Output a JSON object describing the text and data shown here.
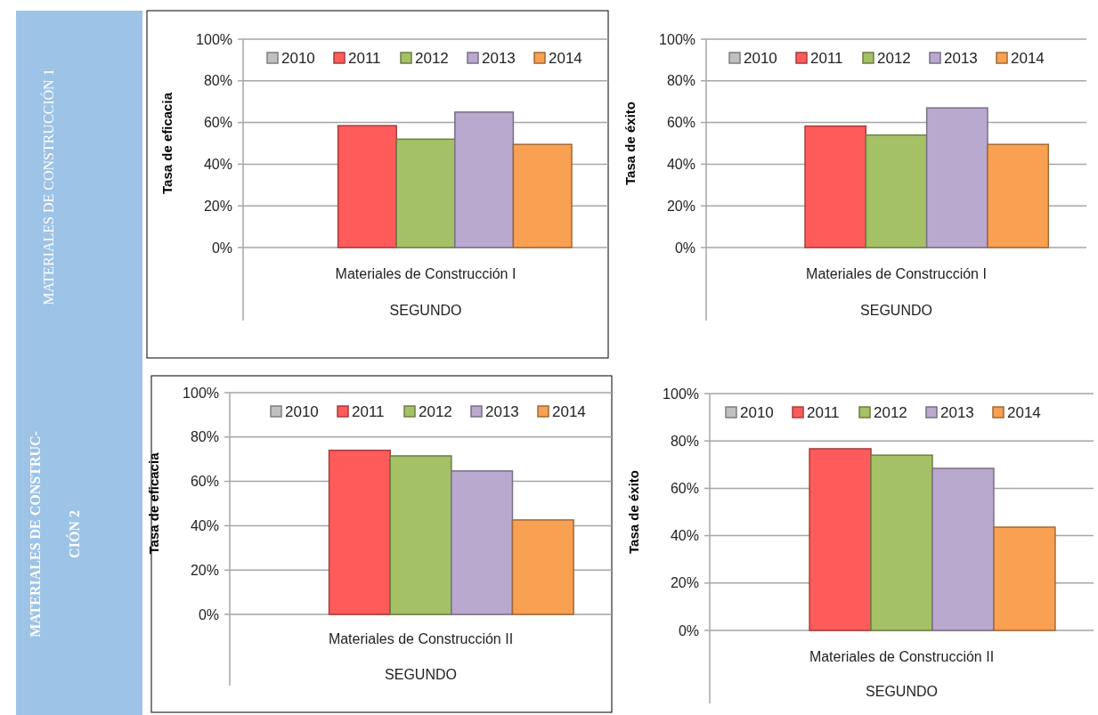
{
  "chart_data": [
    {
      "type": "bar",
      "ylabel": "Tasa de eficacia",
      "xlabel": "SEGUNDO",
      "categories": [
        "Materiales de Construcción I"
      ],
      "ylim": [
        0,
        1
      ],
      "yticks": [
        {
          "value": 0,
          "label": "0%"
        },
        {
          "value": 0.2,
          "label": "20%"
        },
        {
          "value": 0.4,
          "label": "40%"
        },
        {
          "value": 0.6,
          "label": "60%"
        },
        {
          "value": 0.8,
          "label": "80%"
        },
        {
          "value": 1,
          "label": "100%"
        }
      ],
      "grid": "y",
      "legend": "top right",
      "annotations": [
        "MATERIALES DE CONSTRUCCIÓN 1"
      ],
      "series": [
        {
          "name": "2010",
          "color": "#c0c0c0",
          "values": [
            null
          ]
        },
        {
          "name": "2011",
          "color": "#ff5b5b",
          "values": [
            0.585
          ]
        },
        {
          "name": "2012",
          "color": "#a5c166",
          "values": [
            0.52
          ]
        },
        {
          "name": "2013",
          "color": "#b9a9cf",
          "values": [
            0.65
          ]
        },
        {
          "name": "2014",
          "color": "#f9a052",
          "values": [
            0.495
          ]
        }
      ]
    },
    {
      "type": "bar",
      "ylabel": "Tasa de éxito",
      "xlabel": "SEGUNDO",
      "categories": [
        "Materiales de Construcción I"
      ],
      "ylim": [
        0,
        1
      ],
      "yticks": [
        {
          "value": 0,
          "label": "0%"
        },
        {
          "value": 0.2,
          "label": "20%"
        },
        {
          "value": 0.4,
          "label": "40%"
        },
        {
          "value": 0.6,
          "label": "60%"
        },
        {
          "value": 0.8,
          "label": "80%"
        },
        {
          "value": 1,
          "label": "100%"
        }
      ],
      "grid": "y",
      "legend": "top",
      "series": [
        {
          "name": "2010",
          "color": "#c0c0c0",
          "values": [
            null
          ]
        },
        {
          "name": "2011",
          "color": "#ff5b5b",
          "values": [
            0.583
          ]
        },
        {
          "name": "2012",
          "color": "#a5c166",
          "values": [
            0.54
          ]
        },
        {
          "name": "2013",
          "color": "#b9a9cf",
          "values": [
            0.67
          ]
        },
        {
          "name": "2014",
          "color": "#f9a052",
          "values": [
            0.495
          ]
        }
      ]
    },
    {
      "type": "bar",
      "ylabel": "Tasa de eficacia",
      "xlabel": "SEGUNDO",
      "categories": [
        "Materiales de Construcción II"
      ],
      "ylim": [
        0,
        1
      ],
      "yticks": [
        {
          "value": 0,
          "label": "0%"
        },
        {
          "value": 0.2,
          "label": "20%"
        },
        {
          "value": 0.4,
          "label": "40%"
        },
        {
          "value": 0.6,
          "label": "60%"
        },
        {
          "value": 0.8,
          "label": "80%"
        },
        {
          "value": 1,
          "label": "100%"
        }
      ],
      "grid": "y",
      "legend": "top right",
      "annotations": [
        "MATERIALES DE CONSTRUC-CIÓN 2"
      ],
      "series": [
        {
          "name": "2010",
          "color": "#c0c0c0",
          "values": [
            null
          ]
        },
        {
          "name": "2011",
          "color": "#ff5b5b",
          "values": [
            0.74
          ]
        },
        {
          "name": "2012",
          "color": "#a5c166",
          "values": [
            0.715
          ]
        },
        {
          "name": "2013",
          "color": "#b9a9cf",
          "values": [
            0.647
          ]
        },
        {
          "name": "2014",
          "color": "#f9a052",
          "values": [
            0.426
          ]
        }
      ]
    },
    {
      "type": "bar",
      "ylabel": "Tasa de éxito",
      "xlabel": "SEGUNDO",
      "categories": [
        "Materiales de Construcción II"
      ],
      "ylim": [
        0,
        1
      ],
      "yticks": [
        {
          "value": 0,
          "label": "0%"
        },
        {
          "value": 0.2,
          "label": "20%"
        },
        {
          "value": 0.4,
          "label": "40%"
        },
        {
          "value": 0.6,
          "label": "60%"
        },
        {
          "value": 0.8,
          "label": "80%"
        },
        {
          "value": 1,
          "label": "100%"
        }
      ],
      "grid": "y",
      "legend": "top left",
      "series": [
        {
          "name": "2010",
          "color": "#c0c0c0",
          "values": [
            null
          ]
        },
        {
          "name": "2011",
          "color": "#ff5b5b",
          "values": [
            0.767
          ]
        },
        {
          "name": "2012",
          "color": "#a5c166",
          "values": [
            0.74
          ]
        },
        {
          "name": "2013",
          "color": "#b9a9cf",
          "values": [
            0.684
          ]
        },
        {
          "name": "2014",
          "color": "#f9a052",
          "values": [
            0.436
          ]
        }
      ]
    }
  ]
}
